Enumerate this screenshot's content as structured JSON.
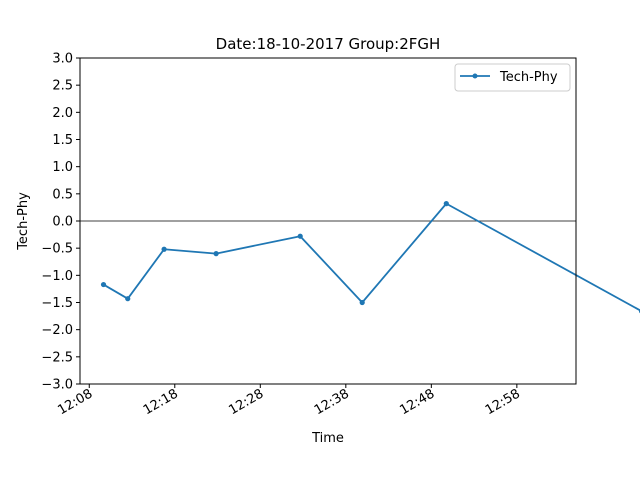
{
  "chart_data": {
    "type": "line",
    "title": "Date:18-10-2017 Group:2FGH",
    "xlabel": "Time",
    "ylabel": "Tech-Phy",
    "x_tick_labels": [
      "12:08",
      "12:18",
      "12:28",
      "12:38",
      "12:48",
      "12:58"
    ],
    "x_tick_times": [
      "12:08",
      "12:18",
      "12:28",
      "12:38",
      "12:48",
      "12:58"
    ],
    "y_ticks": [
      3.0,
      2.5,
      2.0,
      1.5,
      1.0,
      0.5,
      0.0,
      -0.5,
      -1.0,
      -1.5,
      -2.0,
      -2.5,
      -3.0
    ],
    "y_tick_labels": [
      "3.0",
      "2.5",
      "2.0",
      "1.5",
      "1.0",
      "0.5",
      "0.0",
      "−0.5",
      "−1.0",
      "−1.5",
      "−2.0",
      "−2.5",
      "−3.0"
    ],
    "xlim": [
      "12:06:55",
      "12:64:55"
    ],
    "ylim": [
      -3.0,
      3.0
    ],
    "zero_line": true,
    "grid": false,
    "legend": "top-right",
    "series": [
      {
        "name": "Tech-Phy",
        "color": "#1f77b4",
        "marker": "dot",
        "x": [
          "12:09:40",
          "12:12:30",
          "12:16:45",
          "12:22:50",
          "12:32:40",
          "12:39:55",
          "12:49:45",
          "13:12:35"
        ],
        "values": [
          -1.17,
          -1.43,
          -0.52,
          -0.6,
          -0.28,
          -1.5,
          0.32,
          -1.66
        ]
      }
    ]
  }
}
